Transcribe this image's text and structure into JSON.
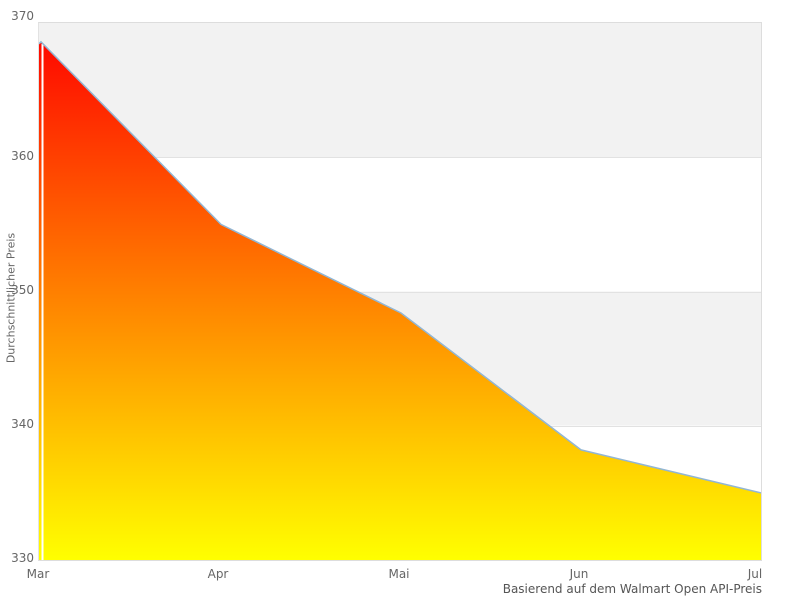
{
  "chart_data": {
    "type": "area",
    "categories": [
      "Mar",
      "Apr",
      "Mai",
      "Jun",
      "Jul"
    ],
    "values": [
      368.6,
      355.0,
      348.4,
      338.2,
      335.0
    ],
    "title": "",
    "xlabel": "",
    "ylabel": "Durchschnittlicher Preis",
    "ylim": [
      330,
      370
    ],
    "ytick_step": 10,
    "grid": "horizontal-bands",
    "legend_position": "none",
    "caption": "Basierend auf dem Walmart Open API-Preis"
  },
  "axis": {
    "y_ticks": [
      "370",
      "360",
      "350",
      "340",
      "330"
    ],
    "x_ticks": [
      "Mar",
      "Apr",
      "Mai",
      "Jun",
      "Jul"
    ]
  },
  "colors": {
    "gradient_top": "#ff0000",
    "gradient_bottom": "#ffff00",
    "line": "#92b6d4",
    "band_gray": "#f2f2f2",
    "band_white": "#ffffff",
    "gridline": "#e2e2e2",
    "border": "#dddddd",
    "first_point_gridline": "#ffffff",
    "tick_text": "#666666",
    "caption_text": "#555555"
  }
}
